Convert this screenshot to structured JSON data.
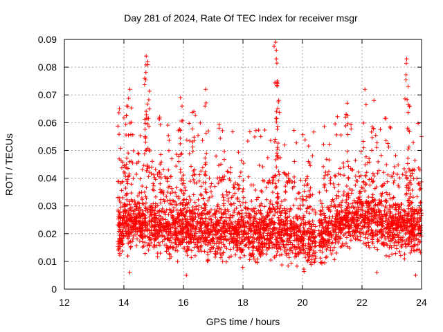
{
  "chart_data": {
    "type": "scatter",
    "title": "Day 281 of 2024, Rate Of TEC Index for receiver msgr",
    "xlabel": "GPS time / hours",
    "ylabel": "ROTI / TECUs",
    "xlim": [
      12,
      24
    ],
    "ylim": [
      0,
      0.09
    ],
    "x_ticks": [
      "12",
      "14",
      "16",
      "18",
      "20",
      "22",
      "24"
    ],
    "y_ticks": [
      "0",
      "0.01",
      "0.02",
      "0.03",
      "0.04",
      "0.05",
      "0.06",
      "0.07",
      "0.08",
      "0.09"
    ],
    "grid": true,
    "marker": "+",
    "color": "#ff0000",
    "data_gap": [
      20.45,
      20.55
    ],
    "series": [
      {
        "name": "ROTI",
        "envelope_note": "dense points 13.8–24 h; band mostly 0.01–0.035 TECU",
        "baseline_profile": {
          "x": [
            13.8,
            14.0,
            14.5,
            15.0,
            15.5,
            16.0,
            16.5,
            17.0,
            17.5,
            18.0,
            18.5,
            19.0,
            19.5,
            20.0,
            20.4,
            20.6,
            21.0,
            21.5,
            22.0,
            22.5,
            23.0,
            23.5,
            24.0
          ],
          "y": [
            0.02,
            0.023,
            0.024,
            0.022,
            0.021,
            0.022,
            0.021,
            0.02,
            0.021,
            0.02,
            0.02,
            0.021,
            0.02,
            0.018,
            0.017,
            0.019,
            0.022,
            0.024,
            0.025,
            0.024,
            0.023,
            0.022,
            0.022
          ]
        },
        "peaks": [
          {
            "x": 13.85,
            "y": 0.065
          },
          {
            "x": 14.1,
            "y": 0.066
          },
          {
            "x": 14.2,
            "y": 0.072
          },
          {
            "x": 14.75,
            "y": 0.084
          },
          {
            "x": 14.8,
            "y": 0.082
          },
          {
            "x": 14.7,
            "y": 0.076
          },
          {
            "x": 15.2,
            "y": 0.062
          },
          {
            "x": 15.9,
            "y": 0.069
          },
          {
            "x": 16.35,
            "y": 0.064
          },
          {
            "x": 16.75,
            "y": 0.072
          },
          {
            "x": 17.2,
            "y": 0.058
          },
          {
            "x": 19.1,
            "y": 0.089
          },
          {
            "x": 19.12,
            "y": 0.083
          },
          {
            "x": 19.15,
            "y": 0.075
          },
          {
            "x": 19.2,
            "y": 0.068
          },
          {
            "x": 20.2,
            "y": 0.046
          },
          {
            "x": 21.5,
            "y": 0.067
          },
          {
            "x": 22.1,
            "y": 0.072
          },
          {
            "x": 22.4,
            "y": 0.068
          },
          {
            "x": 23.5,
            "y": 0.083
          },
          {
            "x": 23.55,
            "y": 0.073
          },
          {
            "x": 23.6,
            "y": 0.066
          },
          {
            "x": 24.0,
            "y": 0.055
          }
        ],
        "minimums": [
          {
            "x": 14.2,
            "y": 0.006
          },
          {
            "x": 16.1,
            "y": 0.005
          },
          {
            "x": 22.5,
            "y": 0.006
          },
          {
            "x": 23.8,
            "y": 0.005
          }
        ]
      }
    ]
  }
}
